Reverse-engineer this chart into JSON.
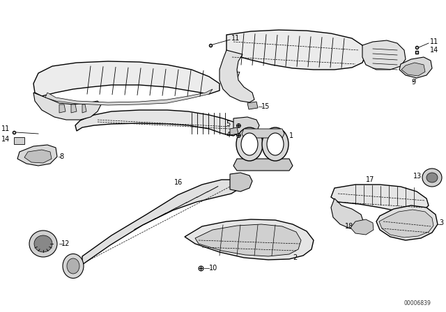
{
  "background_color": "#ffffff",
  "diagram_code": "00006839",
  "fig_width": 6.4,
  "fig_height": 4.48,
  "dpi": 100,
  "line_color": "#000000",
  "text_color": "#000000",
  "face_color": "#e8e8e8",
  "face_color2": "#d0d0d0",
  "face_white": "#ffffff"
}
